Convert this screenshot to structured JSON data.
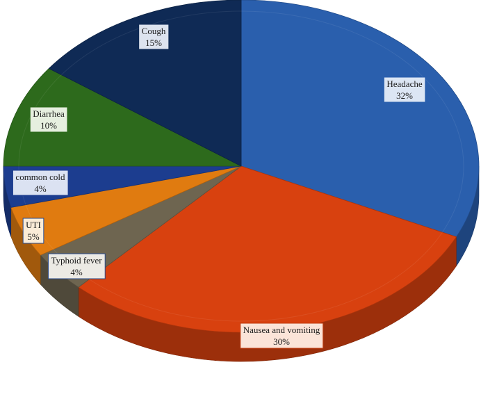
{
  "chart_data": {
    "type": "pie",
    "style": "3d",
    "title": "",
    "slices": [
      {
        "label": "Headache",
        "value": 32,
        "value_label": "32%",
        "color": "#2a5fad",
        "label_bg": "#dce6f4",
        "label_border": "#2a5fad"
      },
      {
        "label": "Nausea and vomiting",
        "value": 30,
        "value_label": "30%",
        "color": "#d8410f",
        "label_bg": "#fbe4d8",
        "label_border": "#c03a0e"
      },
      {
        "label": "Typhoid fever",
        "value": 4,
        "value_label": "4%",
        "color": "#6e6550",
        "label_bg": "#eceae4",
        "label_border": "#2a4a8a"
      },
      {
        "label": "UTI",
        "value": 5,
        "value_label": "5%",
        "color": "#e07b10",
        "label_bg": "#fbecd8",
        "label_border": "#2a4a8a"
      },
      {
        "label": "common cold",
        "value": 4,
        "value_label": "4%",
        "color": "#1c3d8f",
        "label_bg": "#dbe2f2",
        "label_border": "#1c3d8f"
      },
      {
        "label": "Diarrhea",
        "value": 10,
        "value_label": "10%",
        "color": "#2d6a1c",
        "label_bg": "#e6efdf",
        "label_border": "#2d6a1c"
      },
      {
        "label": "Cough",
        "value": 15,
        "value_label": "15%",
        "color": "#0f2a55",
        "label_bg": "#dde3ee",
        "label_border": "#0f2a55"
      }
    ]
  }
}
